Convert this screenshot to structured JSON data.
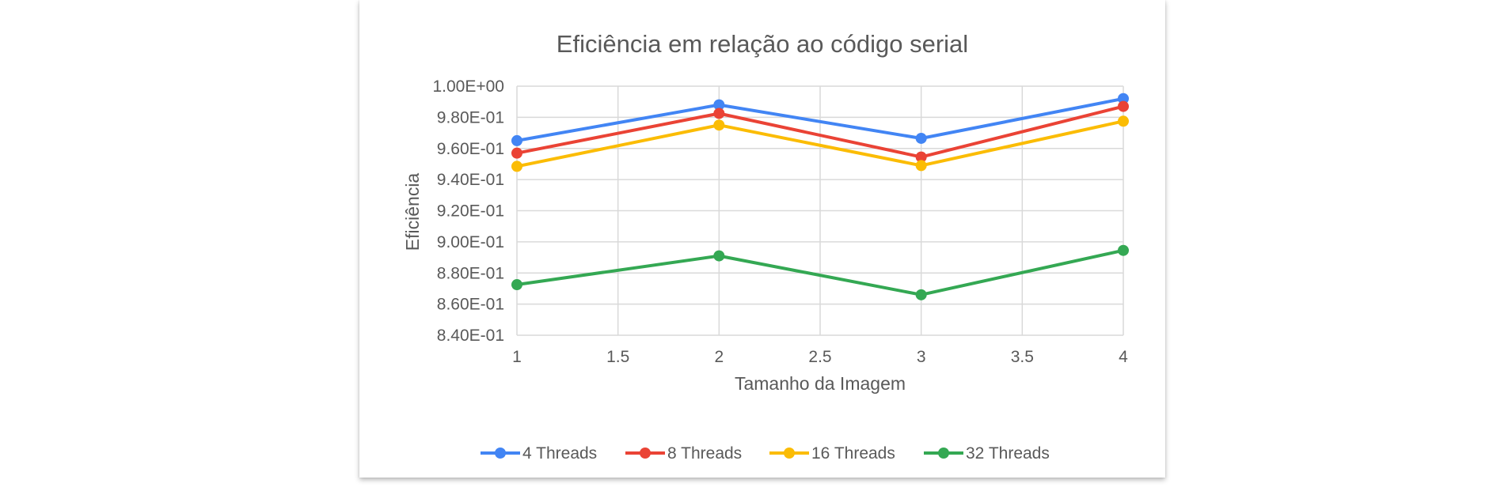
{
  "chart_data": {
    "type": "line",
    "title": "Eficiência em relação ao código serial",
    "xlabel": "Tamanho da Imagem",
    "ylabel": "Eficiência",
    "xlim": [
      1,
      4
    ],
    "ylim": [
      0.84,
      1.0
    ],
    "x_ticks": [
      1,
      1.5,
      2,
      2.5,
      3,
      3.5,
      4
    ],
    "x_tick_labels": [
      "1",
      "1.5",
      "2",
      "2.5",
      "3",
      "3.5",
      "4"
    ],
    "y_ticks": [
      0.84,
      0.86,
      0.88,
      0.9,
      0.92,
      0.94,
      0.96,
      0.98,
      1.0
    ],
    "y_tick_labels": [
      "8.40E-01",
      "8.60E-01",
      "8.80E-01",
      "9.00E-01",
      "9.20E-01",
      "9.40E-01",
      "9.60E-01",
      "9.80E-01",
      "1.00E+00"
    ],
    "grid": true,
    "legend_position": "bottom",
    "x": [
      1,
      2,
      3,
      4
    ],
    "series": [
      {
        "name": "4 Threads",
        "color": "#4285F4",
        "values": [
          0.965,
          0.988,
          0.9665,
          0.992
        ]
      },
      {
        "name": "8 Threads",
        "color": "#EA4335",
        "values": [
          0.957,
          0.9825,
          0.9545,
          0.987
        ]
      },
      {
        "name": "16 Threads",
        "color": "#FBBC04",
        "values": [
          0.9485,
          0.975,
          0.949,
          0.9775
        ]
      },
      {
        "name": "32 Threads",
        "color": "#34A853",
        "values": [
          0.8725,
          0.891,
          0.866,
          0.8945
        ]
      }
    ]
  }
}
